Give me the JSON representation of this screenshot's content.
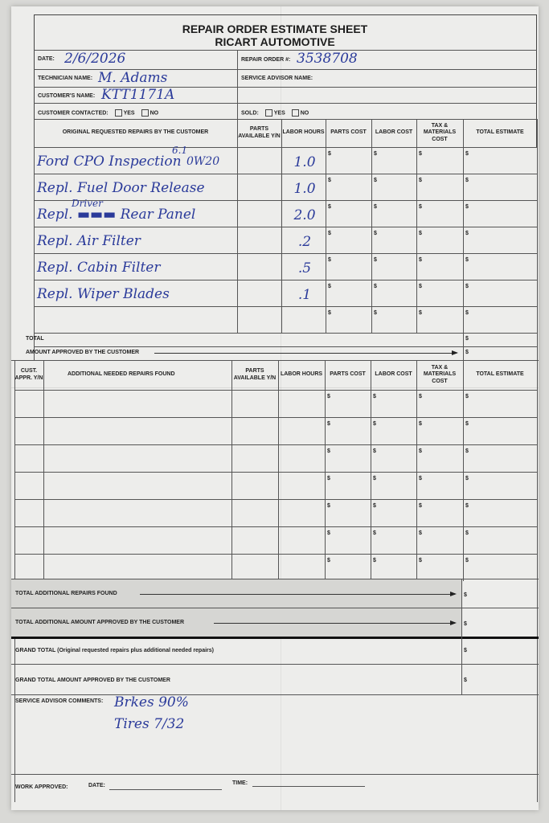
{
  "header": {
    "title": "REPAIR ORDER ESTIMATE SHEET",
    "company": "RICART AUTOMOTIVE"
  },
  "fields": {
    "date_label": "DATE:",
    "date_value": "2/6/2026",
    "repair_order_label": "REPAIR ORDER #:",
    "repair_order_value": "3538708",
    "technician_label": "TECHNICIAN NAME:",
    "technician_value": "M. Adams",
    "service_advisor_label": "SERVICE ADVISOR NAME:",
    "customer_label": "CUSTOMER'S NAME:",
    "customer_value": "KTT1171A",
    "contacted_label": "CUSTOMER CONTACTED:",
    "sold_label": "SOLD:",
    "yes": "YES",
    "no": "NO"
  },
  "original": {
    "columns": [
      "ORIGINAL REQUESTED REPAIRS BY THE CUSTOMER",
      "PARTS AVAILABLE Y/N",
      "LABOR HOURS",
      "PARTS COST",
      "LABOR COST",
      "TAX & MATERIALS COST",
      "TOTAL ESTIMATE"
    ],
    "rows": [
      {
        "description": "Ford CPO Inspection",
        "note_above": "6.1",
        "note": "0W20",
        "labor_hours": "1.0"
      },
      {
        "description": "Repl. Fuel Door Release",
        "labor_hours": "1.0"
      },
      {
        "description": "Repl. ▬▬▬ Rear Panel",
        "note_above": "Driver",
        "labor_hours": "2.0"
      },
      {
        "description": "Repl. Air Filter",
        "labor_hours": ".2"
      },
      {
        "description": "Repl. Cabin Filter",
        "labor_hours": ".5"
      },
      {
        "description": "Repl. Wiper Blades",
        "labor_hours": ".1"
      },
      {
        "description": "",
        "labor_hours": ""
      }
    ],
    "total_label": "TOTAL",
    "approved_label": "AMOUNT APPROVED BY THE CUSTOMER",
    "currency": "$"
  },
  "additional": {
    "columns": [
      "CUST. APPR. Y/N",
      "ADDITIONAL NEEDED REPAIRS FOUND",
      "PARTS AVAILABLE Y/N",
      "LABOR HOURS",
      "PARTS COST",
      "LABOR COST",
      "TAX & MATERIALS COST",
      "TOTAL ESTIMATE"
    ],
    "row_count": 7
  },
  "totals": {
    "additional_found": "TOTAL ADDITIONAL REPAIRS FOUND",
    "additional_approved": "TOTAL ADDITIONAL AMOUNT APPROVED BY THE CUSTOMER",
    "grand_total": "GRAND TOTAL (Original requested repairs plus additional needed repairs)",
    "grand_approved": "GRAND TOTAL AMOUNT APPROVED BY THE CUSTOMER"
  },
  "comments": {
    "label": "SERVICE ADVISOR COMMENTS:",
    "line1": "Brkes 90%",
    "line2": "Tires 7/32"
  },
  "footer": {
    "work_approved": "WORK APPROVED:",
    "date": "DATE:",
    "time": "TIME:"
  }
}
